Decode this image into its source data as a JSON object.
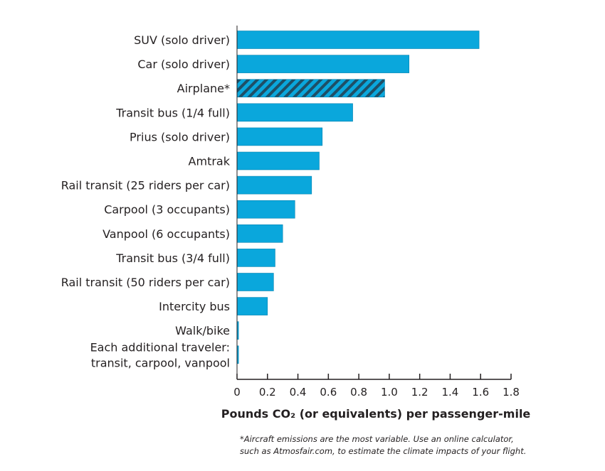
{
  "chart_data": {
    "type": "bar",
    "orientation": "horizontal",
    "categories": [
      [
        "SUV (solo driver)"
      ],
      [
        "Car (solo driver)"
      ],
      [
        "Airplane*"
      ],
      [
        "Transit bus (1/4 full)"
      ],
      [
        "Prius (solo driver)"
      ],
      [
        "Amtrak"
      ],
      [
        "Rail transit (25 riders per car)"
      ],
      [
        "Carpool (3 occupants)"
      ],
      [
        "Vanpool (6 occupants)"
      ],
      [
        "Transit bus (3/4 full)"
      ],
      [
        "Rail transit (50 riders per car)"
      ],
      [
        "Intercity bus"
      ],
      [
        "Walk/bike"
      ],
      [
        "Each additional traveler:",
        "transit, carpool, vanpool"
      ]
    ],
    "values": [
      1.59,
      1.13,
      0.97,
      0.76,
      0.56,
      0.54,
      0.49,
      0.38,
      0.3,
      0.25,
      0.24,
      0.2,
      0.01,
      0.01
    ],
    "hatched": [
      false,
      false,
      true,
      false,
      false,
      false,
      false,
      false,
      false,
      false,
      false,
      false,
      false,
      false
    ],
    "xlim": [
      0,
      1.8
    ],
    "ticks": [
      0,
      0.2,
      0.4,
      0.6,
      0.8,
      1.0,
      1.2,
      1.4,
      1.6,
      1.8
    ],
    "tick_labels": [
      "0",
      "0.2",
      "0.4",
      "0.6",
      "0.8",
      "1.0",
      "1.2",
      "1.4",
      "1.6",
      "1.8"
    ],
    "xlabel": "Pounds CO₂ (or equivalents) per passenger-mile",
    "ylabel": "",
    "title": "",
    "grid": false,
    "colors": {
      "bar": "#0aa7dc",
      "bar_stroke": "#0783b0",
      "hatch": "#1e4f66",
      "axis": "#231f20"
    }
  },
  "footnote": {
    "line1": "*Aircraft emissions are the most variable.  Use an online calculator,",
    "line2": "such as Atmosfair.com, to estimate the climate impacts of your flight."
  }
}
